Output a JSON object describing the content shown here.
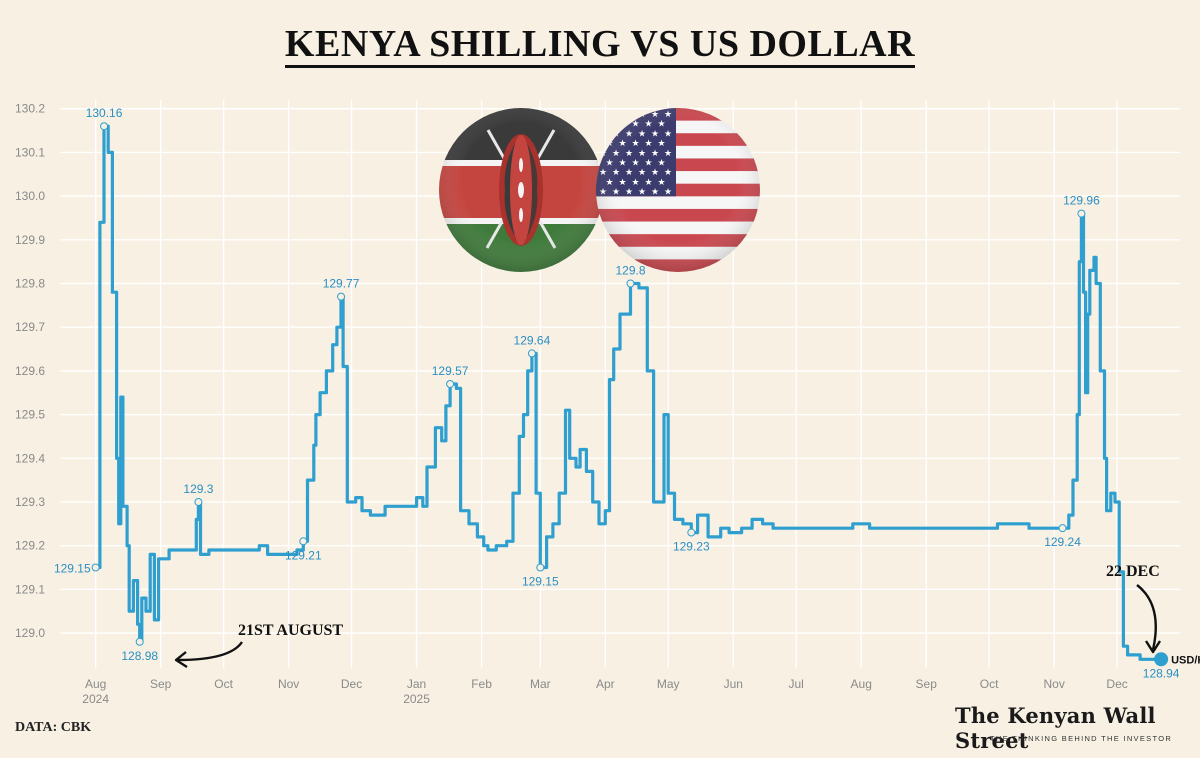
{
  "title": "KENYA SHILLING VS US DOLLAR",
  "source": "DATA: CBK",
  "brand": {
    "name": "The Kenyan Wall Street",
    "tagline": "THE THINKING BEHIND THE INVESTOR"
  },
  "annotations": {
    "aug": "21ST AUGUST",
    "dec": "22 DEC"
  },
  "colors": {
    "line": "#2f9fd0",
    "label": "#2a8fc4",
    "grid": "#ffffff",
    "background": "#f7f0e3"
  },
  "icons": [
    "kenya-flag-icon",
    "us-flag-icon"
  ],
  "chart_data": {
    "type": "line",
    "series": [
      {
        "name": "USD/KSH",
        "values": [
          [
            "2024-08-01",
            129.15
          ],
          [
            "2024-08-03",
            129.94
          ],
          [
            "2024-08-05",
            130.16
          ],
          [
            "2024-08-07",
            130.1
          ],
          [
            "2024-08-09",
            129.78
          ],
          [
            "2024-08-11",
            129.4
          ],
          [
            "2024-08-12",
            129.25
          ],
          [
            "2024-08-13",
            129.54
          ],
          [
            "2024-08-14",
            129.29
          ],
          [
            "2024-08-16",
            129.2
          ],
          [
            "2024-08-17",
            129.05
          ],
          [
            "2024-08-19",
            129.12
          ],
          [
            "2024-08-21",
            129.02
          ],
          [
            "2024-08-22",
            128.98
          ],
          [
            "2024-08-23",
            129.08
          ],
          [
            "2024-08-25",
            129.05
          ],
          [
            "2024-08-27",
            129.18
          ],
          [
            "2024-08-29",
            129.03
          ],
          [
            "2024-08-31",
            129.17
          ],
          [
            "2024-09-05",
            129.19
          ],
          [
            "2024-09-12",
            129.19
          ],
          [
            "2024-09-18",
            129.26
          ],
          [
            "2024-09-19",
            129.3
          ],
          [
            "2024-09-20",
            129.18
          ],
          [
            "2024-09-24",
            129.19
          ],
          [
            "2024-10-08",
            129.19
          ],
          [
            "2024-10-18",
            129.2
          ],
          [
            "2024-10-22",
            129.18
          ],
          [
            "2024-11-05",
            129.19
          ],
          [
            "2024-11-08",
            129.21
          ],
          [
            "2024-11-10",
            129.35
          ],
          [
            "2024-11-13",
            129.43
          ],
          [
            "2024-11-14",
            129.5
          ],
          [
            "2024-11-16",
            129.55
          ],
          [
            "2024-11-19",
            129.6
          ],
          [
            "2024-11-22",
            129.66
          ],
          [
            "2024-11-24",
            129.7
          ],
          [
            "2024-11-26",
            129.77
          ],
          [
            "2024-11-27",
            129.61
          ],
          [
            "2024-11-29",
            129.3
          ],
          [
            "2024-12-03",
            129.31
          ],
          [
            "2024-12-06",
            129.28
          ],
          [
            "2024-12-10",
            129.27
          ],
          [
            "2024-12-17",
            129.29
          ],
          [
            "2024-12-25",
            129.29
          ],
          [
            "2025-01-01",
            129.31
          ],
          [
            "2025-01-04",
            129.29
          ],
          [
            "2025-01-06",
            129.38
          ],
          [
            "2025-01-10",
            129.47
          ],
          [
            "2025-01-13",
            129.44
          ],
          [
            "2025-01-15",
            129.52
          ],
          [
            "2025-01-17",
            129.57
          ],
          [
            "2025-01-20",
            129.56
          ],
          [
            "2025-01-22",
            129.28
          ],
          [
            "2025-01-26",
            129.25
          ],
          [
            "2025-01-30",
            129.22
          ],
          [
            "2025-02-02",
            129.2
          ],
          [
            "2025-02-04",
            129.19
          ],
          [
            "2025-02-08",
            129.2
          ],
          [
            "2025-02-13",
            129.21
          ],
          [
            "2025-02-16",
            129.32
          ],
          [
            "2025-02-19",
            129.45
          ],
          [
            "2025-02-21",
            129.5
          ],
          [
            "2025-02-23",
            129.6
          ],
          [
            "2025-02-25",
            129.64
          ],
          [
            "2025-02-27",
            129.32
          ],
          [
            "2025-03-01",
            129.15
          ],
          [
            "2025-03-04",
            129.22
          ],
          [
            "2025-03-07",
            129.25
          ],
          [
            "2025-03-10",
            129.32
          ],
          [
            "2025-03-13",
            129.51
          ],
          [
            "2025-03-15",
            129.4
          ],
          [
            "2025-03-18",
            129.38
          ],
          [
            "2025-03-20",
            129.42
          ],
          [
            "2025-03-23",
            129.37
          ],
          [
            "2025-03-26",
            129.3
          ],
          [
            "2025-03-29",
            129.25
          ],
          [
            "2025-04-01",
            129.28
          ],
          [
            "2025-04-03",
            129.58
          ],
          [
            "2025-04-05",
            129.65
          ],
          [
            "2025-04-08",
            129.73
          ],
          [
            "2025-04-13",
            129.8
          ],
          [
            "2025-04-17",
            129.79
          ],
          [
            "2025-04-21",
            129.6
          ],
          [
            "2025-04-24",
            129.3
          ],
          [
            "2025-04-26",
            129.3
          ],
          [
            "2025-04-29",
            129.5
          ],
          [
            "2025-05-01",
            129.32
          ],
          [
            "2025-05-04",
            129.26
          ],
          [
            "2025-05-08",
            129.25
          ],
          [
            "2025-05-12",
            129.23
          ],
          [
            "2025-05-15",
            129.27
          ],
          [
            "2025-05-20",
            129.22
          ],
          [
            "2025-05-26",
            129.24
          ],
          [
            "2025-05-30",
            129.23
          ],
          [
            "2025-06-05",
            129.24
          ],
          [
            "2025-06-10",
            129.26
          ],
          [
            "2025-06-15",
            129.25
          ],
          [
            "2025-06-20",
            129.24
          ],
          [
            "2025-06-30",
            129.24
          ],
          [
            "2025-07-15",
            129.24
          ],
          [
            "2025-07-28",
            129.25
          ],
          [
            "2025-08-05",
            129.24
          ],
          [
            "2025-08-20",
            129.24
          ],
          [
            "2025-09-10",
            129.24
          ],
          [
            "2025-09-25",
            129.24
          ],
          [
            "2025-10-05",
            129.25
          ],
          [
            "2025-10-20",
            129.24
          ],
          [
            "2025-11-01",
            129.24
          ],
          [
            "2025-11-05",
            129.24
          ],
          [
            "2025-11-08",
            129.27
          ],
          [
            "2025-11-10",
            129.35
          ],
          [
            "2025-11-12",
            129.5
          ],
          [
            "2025-11-13",
            129.85
          ],
          [
            "2025-11-14",
            129.96
          ],
          [
            "2025-11-15",
            129.78
          ],
          [
            "2025-11-16",
            129.55
          ],
          [
            "2025-11-17",
            129.73
          ],
          [
            "2025-11-18",
            129.83
          ],
          [
            "2025-11-20",
            129.86
          ],
          [
            "2025-11-21",
            129.8
          ],
          [
            "2025-11-23",
            129.6
          ],
          [
            "2025-11-25",
            129.4
          ],
          [
            "2025-11-26",
            129.28
          ],
          [
            "2025-11-28",
            129.32
          ],
          [
            "2025-11-30",
            129.3
          ],
          [
            "2025-12-02",
            129.14
          ],
          [
            "2025-12-04",
            128.97
          ],
          [
            "2025-12-06",
            128.95
          ],
          [
            "2025-12-12",
            128.94
          ],
          [
            "2025-12-22",
            128.94
          ]
        ]
      }
    ],
    "labels": [
      {
        "x": "2024-08-01",
        "y": 129.15,
        "text": "129.15",
        "pos": "left"
      },
      {
        "x": "2024-08-05",
        "y": 130.16,
        "text": "130.16",
        "pos": "top"
      },
      {
        "x": "2024-08-22",
        "y": 128.98,
        "text": "128.98",
        "pos": "bottom"
      },
      {
        "x": "2024-09-19",
        "y": 129.3,
        "text": "129.3",
        "pos": "top"
      },
      {
        "x": "2024-11-08",
        "y": 129.21,
        "text": "129.21",
        "pos": "bottom"
      },
      {
        "x": "2024-11-26",
        "y": 129.77,
        "text": "129.77",
        "pos": "top"
      },
      {
        "x": "2025-01-17",
        "y": 129.57,
        "text": "129.57",
        "pos": "top"
      },
      {
        "x": "2025-02-25",
        "y": 129.64,
        "text": "129.64",
        "pos": "top"
      },
      {
        "x": "2025-03-01",
        "y": 129.15,
        "text": "129.15",
        "pos": "bottom"
      },
      {
        "x": "2025-04-13",
        "y": 129.8,
        "text": "129.8",
        "pos": "top"
      },
      {
        "x": "2025-05-12",
        "y": 129.23,
        "text": "129.23",
        "pos": "bottom"
      },
      {
        "x": "2025-11-05",
        "y": 129.24,
        "text": "129.24",
        "pos": "bottom"
      },
      {
        "x": "2025-11-14",
        "y": 129.96,
        "text": "129.96",
        "pos": "top"
      },
      {
        "x": "2025-12-22",
        "y": 128.94,
        "text": "128.94",
        "pos": "bottom"
      }
    ],
    "x_ticks": [
      {
        "date": "2024-08-01",
        "label": "Aug",
        "sub": "2024"
      },
      {
        "date": "2024-09-01",
        "label": "Sep",
        "sub": ""
      },
      {
        "date": "2024-10-01",
        "label": "Oct",
        "sub": ""
      },
      {
        "date": "2024-11-01",
        "label": "Nov",
        "sub": ""
      },
      {
        "date": "2024-12-01",
        "label": "Dec",
        "sub": ""
      },
      {
        "date": "2025-01-01",
        "label": "Jan",
        "sub": "2025"
      },
      {
        "date": "2025-02-01",
        "label": "Feb",
        "sub": ""
      },
      {
        "date": "2025-03-01",
        "label": "Mar",
        "sub": ""
      },
      {
        "date": "2025-04-01",
        "label": "Apr",
        "sub": ""
      },
      {
        "date": "2025-05-01",
        "label": "May",
        "sub": ""
      },
      {
        "date": "2025-06-01",
        "label": "Jun",
        "sub": ""
      },
      {
        "date": "2025-07-01",
        "label": "Jul",
        "sub": ""
      },
      {
        "date": "2025-08-01",
        "label": "Aug",
        "sub": ""
      },
      {
        "date": "2025-09-01",
        "label": "Sep",
        "sub": ""
      },
      {
        "date": "2025-10-01",
        "label": "Oct",
        "sub": ""
      },
      {
        "date": "2025-11-01",
        "label": "Nov",
        "sub": ""
      },
      {
        "date": "2025-12-01",
        "label": "Dec",
        "sub": ""
      }
    ],
    "y_ticks": [
      129.0,
      129.1,
      129.2,
      129.3,
      129.4,
      129.5,
      129.6,
      129.7,
      129.8,
      129.9,
      130.0,
      130.1,
      130.2
    ],
    "ylim": [
      128.92,
      130.22
    ],
    "xlim": [
      "2024-07-15",
      "2025-12-31"
    ],
    "grid": true,
    "legend": "bottom-right",
    "xlabel": "",
    "ylabel": ""
  }
}
